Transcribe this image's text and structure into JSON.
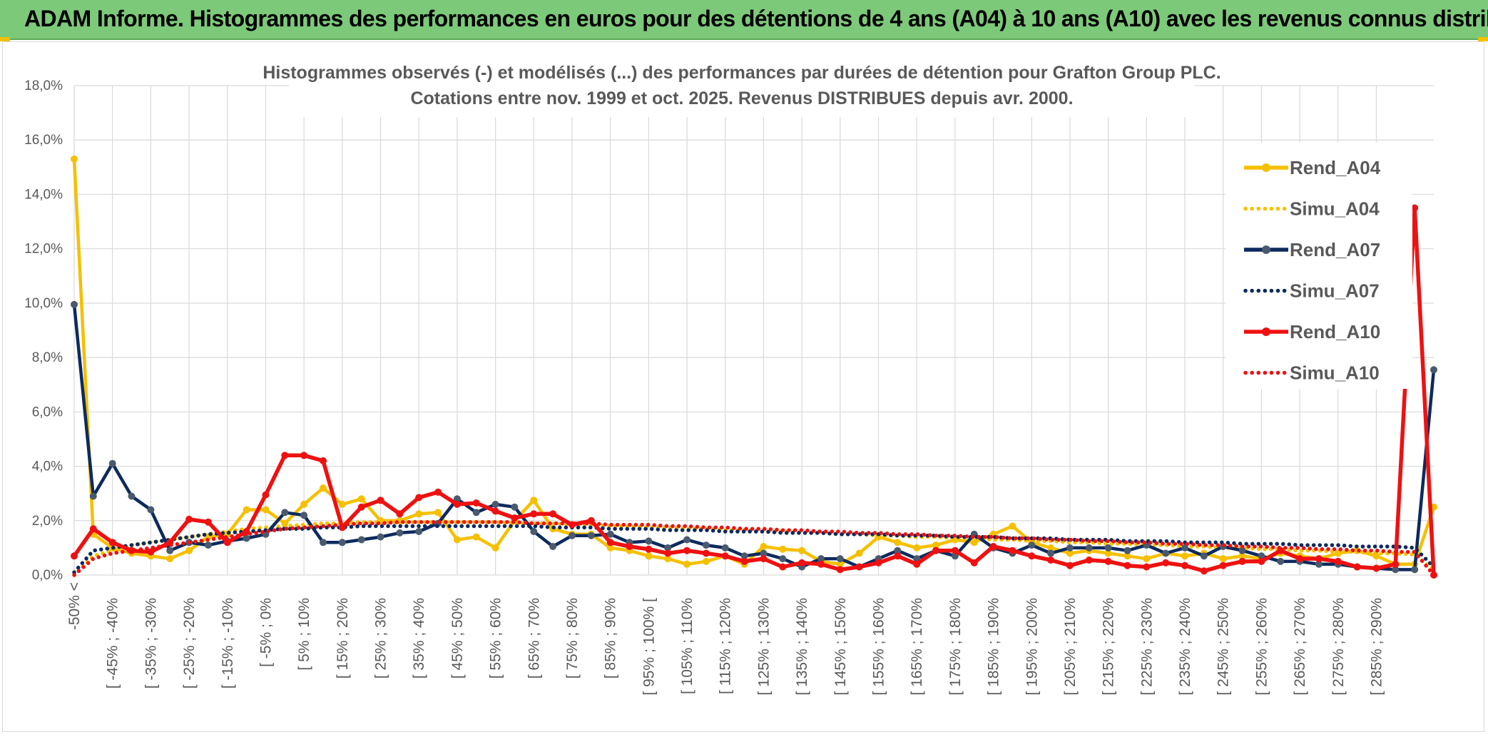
{
  "banner": {
    "title": "ADAM Informe. Histogrammes des performances en euros pour des détentions de 4 ans (A04) à 10 ans (A10) avec les revenus connus distribués"
  },
  "colors": {
    "banner_bg": "#7dc97a",
    "a04": "#f5c000",
    "a07": "#0d2a5e",
    "a07_marker": "#4a5a6e",
    "a10": "#ee1111",
    "grid": "#d9d9d9"
  },
  "chart_data": {
    "type": "line",
    "title_lines": [
      "Histogrammes observés (-) et modélisés (...) des performances par durées de détention pour Grafton Group PLC.",
      "Cotations entre nov. 1999 et oct. 2025. Revenus DISTRIBUES depuis avr. 2000."
    ],
    "ylim": [
      0,
      18
    ],
    "y_ticks": [
      "0,0%",
      "2,0%",
      "4,0%",
      "6,0%",
      "8,0%",
      "10,0%",
      "12,0%",
      "14,0%",
      "16,0%",
      "18,0%"
    ],
    "x_labels": [
      "-50% <",
      "[ -45% ; -40%",
      "[ -35% ; -30%",
      "[ -25% ; -20%",
      "[ -15% ; -10%",
      "[ -5% ; 0%",
      "[ 5% ; 10%",
      "[ 15% ; 20%",
      "[ 25% ; 30%",
      "[ 35% ; 40%",
      "[ 45% ; 50%",
      "[ 55% ; 60%",
      "[ 65% ; 70%",
      "[ 75% ; 80%",
      "[ 85% ; 90%",
      "[ 95% ; 100% [",
      "[ 105% ; 110%",
      "[ 115% ; 120%",
      "[ 125% ; 130%",
      "[ 135% ; 140%",
      "[ 145% ; 150%",
      "[ 155% ; 160%",
      "[ 165% ; 170%",
      "[ 175% ; 180%",
      "[ 185% ; 190%",
      "[ 195% ; 200%",
      "[ 205% ; 210%",
      "[ 215% ; 220%",
      "[ 225% ; 230%",
      "[ 235% ; 240%",
      "[ 245% ; 250%",
      "[ 255% ; 260%",
      "[ 265% ; 270%",
      "[ 275% ; 280%",
      "[ 285% ; 290%"
    ],
    "legend_position": "right",
    "series": [
      {
        "name": "Rend_A04",
        "style": "solid",
        "color": "#f5c000",
        "values": [
          15.3,
          1.5,
          1.0,
          0.8,
          0.7,
          0.6,
          0.9,
          1.4,
          1.5,
          2.4,
          2.4,
          1.9,
          2.6,
          3.2,
          2.6,
          2.8,
          2.0,
          2.0,
          2.25,
          2.3,
          1.3,
          1.4,
          1.0,
          2.0,
          2.75,
          1.7,
          1.5,
          1.5,
          1.0,
          0.9,
          0.7,
          0.6,
          0.4,
          0.5,
          0.7,
          0.4,
          1.05,
          0.95,
          0.9,
          0.5,
          0.4,
          0.8,
          1.4,
          1.2,
          1.0,
          1.1,
          1.3,
          1.2,
          1.5,
          1.8,
          1.2,
          1.0,
          0.8,
          0.9,
          0.8,
          0.7,
          0.6,
          0.8,
          0.7,
          0.8,
          0.6,
          0.7,
          0.6,
          0.8,
          0.7,
          0.6,
          0.8,
          0.9,
          0.7,
          0.4,
          0.4,
          2.5
        ]
      },
      {
        "name": "Simu_A04",
        "style": "dotted",
        "color": "#f5c000",
        "values": [
          0.0,
          0.7,
          0.9,
          1.1,
          1.2,
          1.3,
          1.4,
          1.5,
          1.6,
          1.7,
          1.75,
          1.8,
          1.85,
          1.9,
          1.9,
          1.95,
          1.95,
          1.95,
          1.95,
          1.95,
          1.95,
          1.95,
          1.95,
          1.9,
          1.9,
          1.9,
          1.85,
          1.85,
          1.8,
          1.8,
          1.75,
          1.75,
          1.7,
          1.7,
          1.65,
          1.65,
          1.6,
          1.6,
          1.55,
          1.55,
          1.5,
          1.5,
          1.45,
          1.45,
          1.4,
          1.4,
          1.35,
          1.35,
          1.3,
          1.3,
          1.25,
          1.25,
          1.2,
          1.2,
          1.15,
          1.15,
          1.1,
          1.1,
          1.05,
          1.05,
          1.0,
          1.0,
          0.95,
          0.95,
          0.9,
          0.9,
          0.85,
          0.85,
          0.8,
          0.8,
          0.75,
          0.2
        ]
      },
      {
        "name": "Rend_A07",
        "style": "solid",
        "color": "#0d2a5e",
        "values": [
          9.95,
          2.9,
          4.1,
          2.9,
          2.4,
          0.9,
          1.2,
          1.1,
          1.25,
          1.35,
          1.5,
          2.3,
          2.2,
          1.2,
          1.2,
          1.3,
          1.4,
          1.55,
          1.6,
          1.9,
          2.8,
          2.3,
          2.6,
          2.5,
          1.6,
          1.05,
          1.45,
          1.45,
          1.5,
          1.2,
          1.25,
          1.0,
          1.3,
          1.1,
          1.0,
          0.7,
          0.8,
          0.6,
          0.3,
          0.6,
          0.6,
          0.3,
          0.6,
          0.9,
          0.6,
          0.9,
          0.7,
          1.5,
          1.0,
          0.8,
          1.1,
          0.8,
          1.0,
          1.0,
          1.0,
          0.9,
          1.1,
          0.8,
          1.0,
          0.7,
          1.05,
          0.9,
          0.7,
          0.5,
          0.5,
          0.4,
          0.4,
          0.3,
          0.25,
          0.2,
          0.2,
          7.55
        ]
      },
      {
        "name": "Simu_A07",
        "style": "dotted",
        "color": "#0d2a5e",
        "values": [
          0.1,
          0.9,
          1.0,
          1.1,
          1.2,
          1.3,
          1.4,
          1.5,
          1.55,
          1.6,
          1.65,
          1.7,
          1.7,
          1.75,
          1.75,
          1.8,
          1.8,
          1.8,
          1.8,
          1.8,
          1.8,
          1.8,
          1.8,
          1.8,
          1.8,
          1.75,
          1.75,
          1.75,
          1.7,
          1.7,
          1.7,
          1.65,
          1.65,
          1.65,
          1.6,
          1.6,
          1.6,
          1.55,
          1.55,
          1.55,
          1.5,
          1.5,
          1.5,
          1.45,
          1.45,
          1.45,
          1.4,
          1.4,
          1.4,
          1.35,
          1.35,
          1.35,
          1.3,
          1.3,
          1.3,
          1.25,
          1.25,
          1.25,
          1.2,
          1.2,
          1.2,
          1.15,
          1.15,
          1.15,
          1.1,
          1.1,
          1.1,
          1.05,
          1.05,
          1.05,
          1.0,
          0.3
        ]
      },
      {
        "name": "Rend_A10",
        "style": "solid",
        "color": "#ee1111",
        "values": [
          0.7,
          1.7,
          1.2,
          0.9,
          0.85,
          1.2,
          2.05,
          1.95,
          1.2,
          1.6,
          2.95,
          4.4,
          4.4,
          4.2,
          1.75,
          2.5,
          2.75,
          2.25,
          2.85,
          3.05,
          2.6,
          2.65,
          2.35,
          2.1,
          2.25,
          2.25,
          1.85,
          2.0,
          1.2,
          1.05,
          0.95,
          0.8,
          0.9,
          0.8,
          0.7,
          0.5,
          0.6,
          0.3,
          0.45,
          0.4,
          0.2,
          0.3,
          0.45,
          0.7,
          0.4,
          0.9,
          0.9,
          0.45,
          1.05,
          0.9,
          0.7,
          0.55,
          0.35,
          0.55,
          0.5,
          0.35,
          0.3,
          0.45,
          0.35,
          0.15,
          0.35,
          0.5,
          0.5,
          0.9,
          0.6,
          0.6,
          0.5,
          0.3,
          0.25,
          0.4,
          13.5,
          0.0
        ]
      },
      {
        "name": "Simu_A10",
        "style": "dotted",
        "color": "#ee1111",
        "values": [
          0.0,
          0.6,
          0.8,
          0.9,
          1.0,
          1.1,
          1.2,
          1.3,
          1.4,
          1.5,
          1.6,
          1.7,
          1.75,
          1.8,
          1.85,
          1.9,
          1.9,
          1.95,
          1.95,
          1.95,
          1.95,
          1.95,
          1.95,
          1.95,
          1.9,
          1.9,
          1.9,
          1.9,
          1.85,
          1.85,
          1.85,
          1.8,
          1.8,
          1.75,
          1.75,
          1.7,
          1.7,
          1.65,
          1.65,
          1.6,
          1.6,
          1.55,
          1.55,
          1.5,
          1.5,
          1.45,
          1.45,
          1.4,
          1.4,
          1.35,
          1.35,
          1.3,
          1.3,
          1.25,
          1.25,
          1.2,
          1.2,
          1.15,
          1.15,
          1.1,
          1.1,
          1.05,
          1.05,
          1.0,
          1.0,
          0.95,
          0.95,
          0.9,
          0.9,
          0.85,
          0.85,
          0.0
        ]
      }
    ]
  }
}
